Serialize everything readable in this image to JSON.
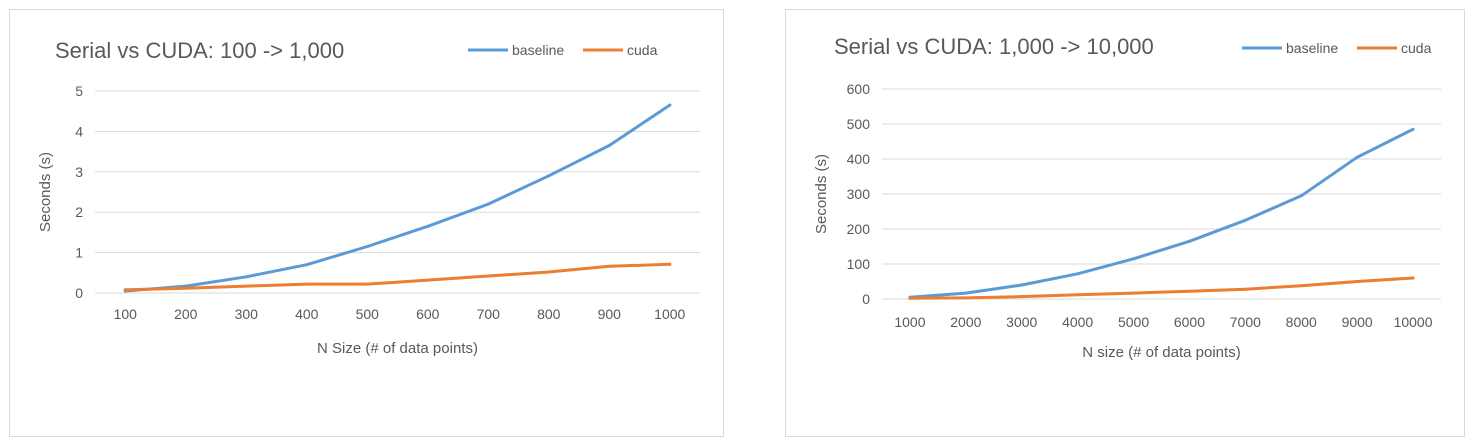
{
  "chart_data": [
    {
      "type": "line",
      "title": "Serial vs CUDA: 100 -> 1,000",
      "xlabel": "N Size (# of data points)",
      "ylabel": "Seconds (s)",
      "categories": [
        "100",
        "200",
        "300",
        "400",
        "500",
        "600",
        "700",
        "800",
        "900",
        "1000"
      ],
      "yticks": [
        "0",
        "1",
        "2",
        "3",
        "4",
        "5"
      ],
      "ylim": [
        0,
        5
      ],
      "grid": true,
      "legend_position": "top-right",
      "series": [
        {
          "name": "baseline",
          "color": "#5b9bd5",
          "values": [
            0.05,
            0.17,
            0.4,
            0.7,
            1.15,
            1.65,
            2.2,
            2.9,
            3.65,
            4.65
          ]
        },
        {
          "name": "cuda",
          "color": "#ed7d31",
          "values": [
            0.08,
            0.12,
            0.17,
            0.22,
            0.22,
            0.32,
            0.42,
            0.52,
            0.66,
            0.71
          ]
        }
      ]
    },
    {
      "type": "line",
      "title": "Serial vs CUDA: 1,000 -> 10,000",
      "xlabel": "N size (# of data points)",
      "ylabel": "Seconds (s)",
      "categories": [
        "1000",
        "2000",
        "3000",
        "4000",
        "5000",
        "6000",
        "7000",
        "8000",
        "9000",
        "10000"
      ],
      "yticks": [
        "0",
        "100",
        "200",
        "300",
        "400",
        "500",
        "600"
      ],
      "ylim": [
        0,
        600
      ],
      "grid": true,
      "legend_position": "top-right",
      "series": [
        {
          "name": "baseline",
          "color": "#5b9bd5",
          "values": [
            5,
            17,
            40,
            72,
            115,
            165,
            225,
            295,
            405,
            485
          ]
        },
        {
          "name": "cuda",
          "color": "#ed7d31",
          "values": [
            2,
            3,
            7,
            12,
            17,
            22,
            28,
            38,
            50,
            60
          ]
        }
      ]
    }
  ]
}
